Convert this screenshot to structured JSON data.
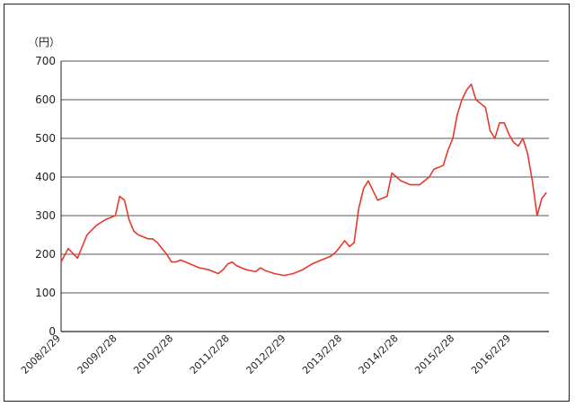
{
  "chart_data": {
    "type": "line",
    "title": "",
    "xlabel": "",
    "ylabel": "",
    "unit_label": "（円）",
    "ylim": [
      0,
      700
    ],
    "yticks": [
      0,
      100,
      200,
      300,
      400,
      500,
      600,
      700
    ],
    "grid": true,
    "legend": "none",
    "line_color": "#e8392c",
    "x_tick_labels": [
      "2008/2/29",
      "2009/2/28",
      "2010/2/28",
      "2011/2/28",
      "2012/2/29",
      "2013/2/28",
      "2014/2/28",
      "2015/2/28",
      "2016/2/29"
    ],
    "series": [
      {
        "x": [
          "2008/02/29",
          "2008/04/15",
          "2008/06/15",
          "2008/08/15",
          "2008/10/15",
          "2008/12/15",
          "2009/02/15",
          "2009/03/15",
          "2009/04/15",
          "2009/05/15",
          "2009/06/15",
          "2009/07/15",
          "2009/08/15",
          "2009/09/15",
          "2009/10/15",
          "2009/11/15",
          "2009/12/15",
          "2010/01/15",
          "2010/02/15",
          "2010/03/15",
          "2010/04/15",
          "2010/06/15",
          "2010/08/15",
          "2010/10/15",
          "2010/12/15",
          "2011/01/15",
          "2011/02/15",
          "2011/03/15",
          "2011/04/15",
          "2011/06/15",
          "2011/08/15",
          "2011/09/15",
          "2011/10/15",
          "2011/12/15",
          "2012/02/15",
          "2012/04/15",
          "2012/06/15",
          "2012/08/15",
          "2012/10/15",
          "2012/12/15",
          "2013/01/15",
          "2013/02/15",
          "2013/03/15",
          "2013/04/15",
          "2013/05/15",
          "2013/06/15",
          "2013/07/15",
          "2013/08/15",
          "2013/10/15",
          "2013/12/15",
          "2014/01/15",
          "2014/02/15",
          "2014/03/15",
          "2014/05/15",
          "2014/07/15",
          "2014/09/15",
          "2014/10/15",
          "2014/12/15",
          "2015/01/15",
          "2015/02/15",
          "2015/03/15",
          "2015/04/15",
          "2015/05/15",
          "2015/06/15",
          "2015/07/15",
          "2015/08/15",
          "2015/09/15",
          "2015/10/15",
          "2015/11/15",
          "2015/12/15",
          "2016/01/15",
          "2016/02/15",
          "2016/03/15",
          "2016/04/15",
          "2016/05/15",
          "2016/06/15",
          "2016/07/15",
          "2016/08/15",
          "2016/09/15",
          "2016/10/15"
        ],
        "y": [
          180,
          215,
          190,
          250,
          275,
          290,
          300,
          350,
          340,
          290,
          260,
          250,
          245,
          240,
          240,
          230,
          215,
          200,
          180,
          180,
          185,
          175,
          165,
          160,
          150,
          160,
          175,
          180,
          170,
          160,
          155,
          165,
          158,
          150,
          145,
          150,
          160,
          175,
          185,
          195,
          205,
          220,
          235,
          220,
          230,
          320,
          370,
          390,
          340,
          350,
          410,
          400,
          390,
          380,
          380,
          400,
          420,
          430,
          470,
          500,
          560,
          600,
          625,
          640,
          600,
          590,
          580,
          520,
          500,
          540,
          540,
          510,
          490,
          480,
          500,
          460,
          390,
          300,
          345,
          360
        ]
      }
    ]
  }
}
